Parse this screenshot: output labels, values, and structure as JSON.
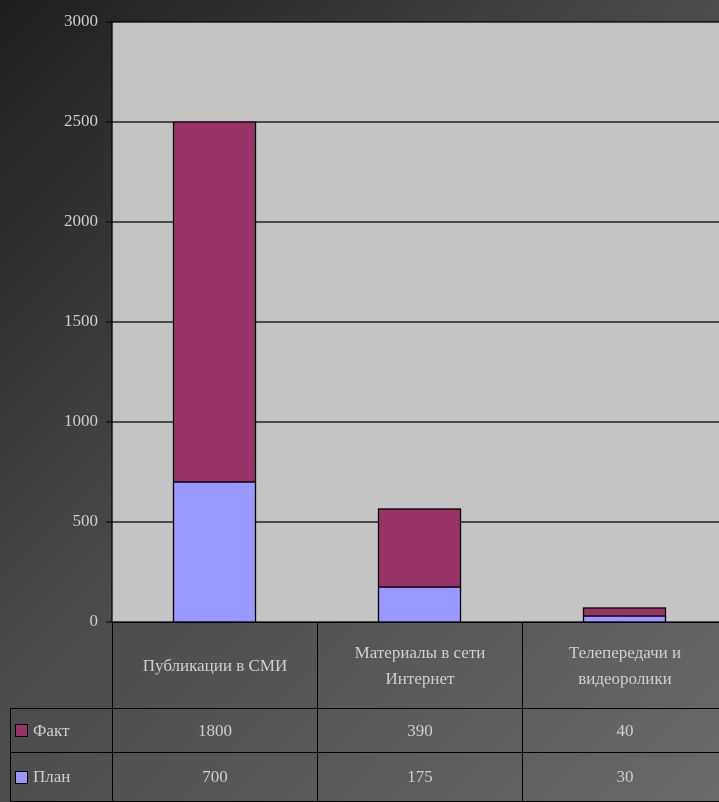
{
  "chart_data": {
    "type": "stacked_bar",
    "categories": [
      "Публикации в СМИ",
      "Материалы в сети Интернет",
      "Телепередачи и видеоролики"
    ],
    "series": [
      {
        "name": "План",
        "color": "#9999ff",
        "values": [
          700,
          175,
          30
        ]
      },
      {
        "name": "Факт",
        "color": "#993366",
        "values": [
          1800,
          390,
          40
        ]
      }
    ],
    "ylim": [
      0,
      3000
    ],
    "yticks": [
      0,
      500,
      1000,
      1500,
      2000,
      2500,
      3000
    ],
    "grid": true
  }
}
